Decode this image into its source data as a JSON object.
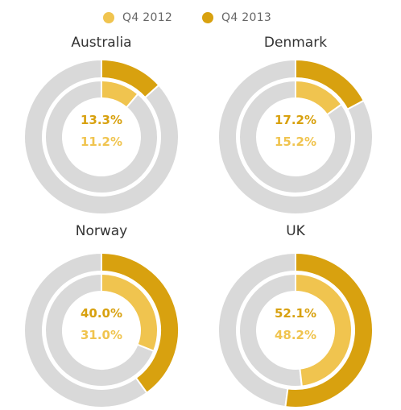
{
  "chart_data": [
    {
      "type": "donut",
      "title": "Australia",
      "series": [
        {
          "name": "Q4 2012",
          "value": 11.2,
          "label": "11.2%"
        },
        {
          "name": "Q4 2013",
          "value": 13.3,
          "label": "13.3%"
        }
      ]
    },
    {
      "type": "donut",
      "title": "Denmark",
      "series": [
        {
          "name": "Q4 2012",
          "value": 15.2,
          "label": "15.2%"
        },
        {
          "name": "Q4 2013",
          "value": 17.2,
          "label": "17.2%"
        }
      ]
    },
    {
      "type": "donut",
      "title": "Norway",
      "series": [
        {
          "name": "Q4 2012",
          "value": 31.0,
          "label": "31.0%"
        },
        {
          "name": "Q4 2013",
          "value": 40.0,
          "label": "40.0%"
        }
      ]
    },
    {
      "type": "donut",
      "title": "UK",
      "series": [
        {
          "name": "Q4 2012",
          "value": 48.2,
          "label": "48.2%"
        },
        {
          "name": "Q4 2013",
          "value": 52.1,
          "label": "52.1%"
        }
      ]
    }
  ],
  "legend": [
    {
      "name": "Q4 2012",
      "color": "#f0c44f"
    },
    {
      "name": "Q4 2013",
      "color": "#d8a10f"
    }
  ],
  "colors": {
    "q4_2012": "#f0c44f",
    "q4_2013": "#d8a10f",
    "remainder": "#d9d9d9",
    "title_text": "#333333"
  }
}
